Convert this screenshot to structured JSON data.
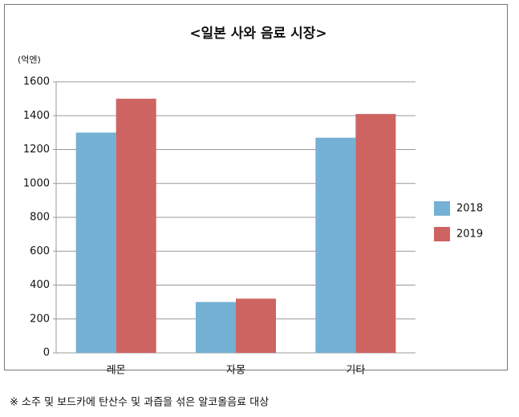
{
  "chart_data": {
    "type": "bar",
    "title": "<일본 사와 음료 시장>",
    "y_unit": "(억엔)",
    "categories": [
      "레몬",
      "자몽",
      "기타"
    ],
    "series": [
      {
        "name": "2018",
        "color": "#74b1d4",
        "values": [
          1300,
          300,
          1270
        ]
      },
      {
        "name": "2019",
        "color": "#cd6462",
        "values": [
          1500,
          320,
          1410
        ]
      }
    ],
    "ylim": [
      0,
      1600
    ],
    "yticks": [
      0,
      200,
      400,
      600,
      800,
      1000,
      1200,
      1400,
      1600
    ],
    "grid": true,
    "legend": "right",
    "footnote": "※ 소주 및 보드카에 탄산수 및 과즙을 섞은 알코올음료 대상"
  }
}
